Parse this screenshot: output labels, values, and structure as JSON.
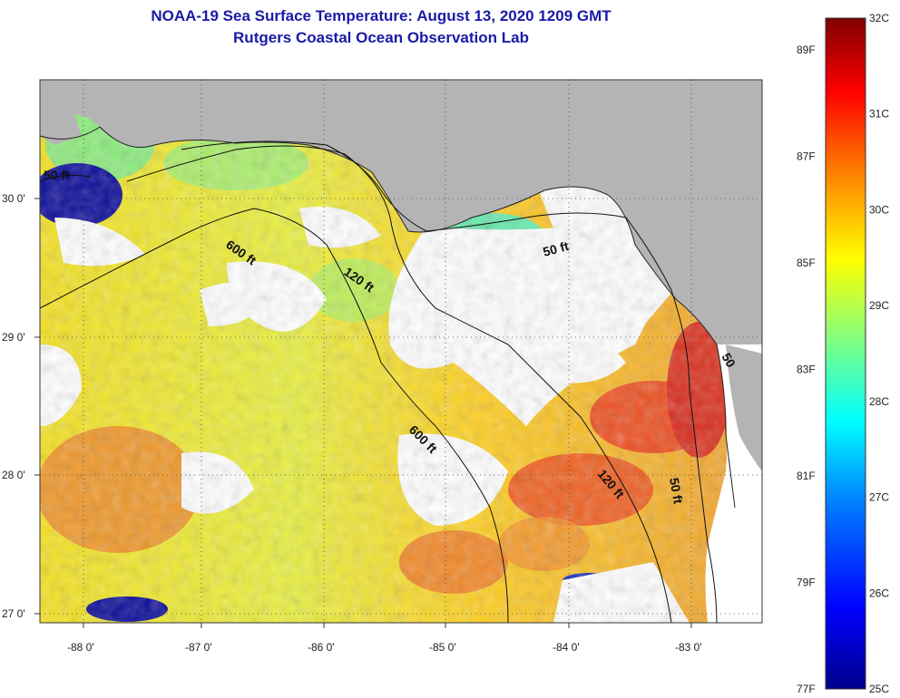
{
  "header": {
    "title_line1": "NOAA-19 Sea Surface Temperature:  August 13, 2020 1209 GMT",
    "title_line2": "Rutgers Coastal Ocean Observation Lab"
  },
  "map": {
    "lon_range": [
      -88.3,
      -82.5
    ],
    "lat_range": [
      26.95,
      30.85
    ],
    "lon_ticks": [
      "-88 0'",
      "-87 0'",
      "-86 0'",
      "-85 0'",
      "-84 0'",
      "-83 0'"
    ],
    "lat_ticks": [
      "27 0'",
      "28 0'",
      "29 0'",
      "30 0'"
    ],
    "contour_labels": [
      "50 ft",
      "600 ft",
      "120 ft",
      "50 ft",
      "600 ft",
      "120 ft",
      "50 ft",
      "50"
    ],
    "colors": {
      "land": "#b4b4b4",
      "cloud": "#ffffff",
      "grid": "#444444"
    }
  },
  "colorbar": {
    "celsius_labels": [
      "32C",
      "31C",
      "30C",
      "29C",
      "28C",
      "27C",
      "26C",
      "25C"
    ],
    "fahrenheit_labels": [
      "89F",
      "87F",
      "85F",
      "83F",
      "81F",
      "79F",
      "77F"
    ],
    "range_c": [
      25,
      32
    ],
    "colors": [
      "#00008b",
      "#0000ff",
      "#0080ff",
      "#00ffff",
      "#80ff80",
      "#ffff00",
      "#ff8000",
      "#ff0000",
      "#800000"
    ]
  }
}
